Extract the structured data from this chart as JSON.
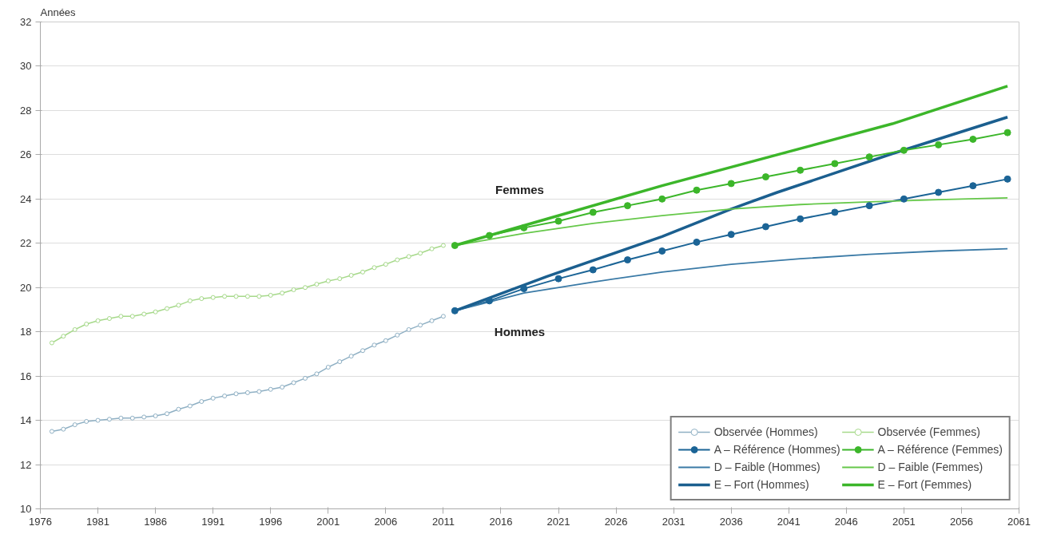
{
  "chart_data": {
    "type": "line",
    "ylabel": "Années",
    "xlim": [
      1976,
      2061
    ],
    "xticks": [
      1976,
      1981,
      1986,
      1991,
      1996,
      2001,
      2006,
      2011,
      2016,
      2021,
      2026,
      2031,
      2036,
      2041,
      2046,
      2051,
      2056,
      2061
    ],
    "ylim": [
      10,
      32
    ],
    "yticks": [
      10,
      12,
      14,
      16,
      18,
      20,
      22,
      24,
      26,
      28,
      30,
      32
    ],
    "grid": "y",
    "legend": "bottom right",
    "annotations": [
      "Femmes",
      "Hommes"
    ],
    "series": [
      {
        "name": "Observée (Hommes)",
        "color": "#8fb0c4",
        "marker": "circle",
        "x": [
          1977,
          1978,
          1979,
          1980,
          1981,
          1982,
          1983,
          1984,
          1985,
          1986,
          1987,
          1988,
          1989,
          1990,
          1991,
          1992,
          1993,
          1994,
          1995,
          1996,
          1997,
          1998,
          1999,
          2000,
          2001,
          2002,
          2003,
          2004,
          2005,
          2006,
          2007,
          2008,
          2009,
          2010,
          2011
        ],
        "values": [
          13.5,
          13.6,
          13.8,
          13.95,
          14.0,
          14.05,
          14.1,
          14.1,
          14.15,
          14.2,
          14.3,
          14.5,
          14.65,
          14.85,
          15.0,
          15.1,
          15.2,
          15.25,
          15.3,
          15.4,
          15.5,
          15.7,
          15.9,
          16.1,
          16.4,
          16.65,
          16.9,
          17.15,
          17.4,
          17.6,
          17.85,
          18.1,
          18.3,
          18.5,
          18.7
        ]
      },
      {
        "name": "A – Référence (Hommes)",
        "color": "#1b6496",
        "marker": "circle",
        "x": [
          2012,
          2015,
          2018,
          2021,
          2024,
          2027,
          2030,
          2033,
          2036,
          2039,
          2042,
          2045,
          2048,
          2051,
          2054,
          2057,
          2060
        ],
        "values": [
          18.95,
          19.4,
          19.95,
          20.4,
          20.8,
          21.25,
          21.65,
          22.05,
          22.4,
          22.75,
          23.1,
          23.4,
          23.7,
          24.0,
          24.3,
          24.6,
          24.9
        ]
      },
      {
        "name": "D – Faible (Hommes)",
        "color": "#3a7aa6",
        "x": [
          2012,
          2018,
          2024,
          2030,
          2036,
          2042,
          2048,
          2054,
          2060
        ],
        "values": [
          18.95,
          19.75,
          20.25,
          20.7,
          21.05,
          21.3,
          21.5,
          21.65,
          21.75
        ]
      },
      {
        "name": "E – Fort (Hommes)",
        "color": "#1b5f8f",
        "x": [
          2012,
          2020,
          2030,
          2036,
          2040,
          2050,
          2060
        ],
        "values": [
          18.95,
          20.5,
          22.3,
          23.55,
          24.3,
          26.05,
          27.7
        ]
      },
      {
        "name": "Observée (Femmes)",
        "color": "#a6d98a",
        "marker": "circle",
        "x": [
          1977,
          1978,
          1979,
          1980,
          1981,
          1982,
          1983,
          1984,
          1985,
          1986,
          1987,
          1988,
          1989,
          1990,
          1991,
          1992,
          1993,
          1994,
          1995,
          1996,
          1997,
          1998,
          1999,
          2000,
          2001,
          2002,
          2003,
          2004,
          2005,
          2006,
          2007,
          2008,
          2009,
          2010,
          2011
        ],
        "values": [
          17.5,
          17.8,
          18.1,
          18.35,
          18.5,
          18.6,
          18.7,
          18.7,
          18.8,
          18.9,
          19.05,
          19.2,
          19.4,
          19.5,
          19.55,
          19.6,
          19.6,
          19.6,
          19.6,
          19.65,
          19.75,
          19.9,
          20.0,
          20.15,
          20.3,
          20.4,
          20.55,
          20.7,
          20.9,
          21.05,
          21.25,
          21.4,
          21.55,
          21.75,
          21.9
        ]
      },
      {
        "name": "A – Référence (Femmes)",
        "color": "#3cb62a",
        "marker": "circle",
        "x": [
          2012,
          2015,
          2018,
          2021,
          2024,
          2027,
          2030,
          2033,
          2036,
          2039,
          2042,
          2045,
          2048,
          2051,
          2054,
          2057,
          2060
        ],
        "values": [
          21.9,
          22.35,
          22.7,
          23.0,
          23.4,
          23.7,
          24.0,
          24.4,
          24.7,
          25.0,
          25.3,
          25.6,
          25.9,
          26.2,
          26.45,
          26.7,
          27.0
        ]
      },
      {
        "name": "D – Faible (Femmes)",
        "color": "#66c84a",
        "x": [
          2012,
          2018,
          2024,
          2030,
          2036,
          2042,
          2048,
          2054,
          2060
        ],
        "values": [
          21.9,
          22.45,
          22.9,
          23.25,
          23.55,
          23.75,
          23.87,
          23.97,
          24.05
        ]
      },
      {
        "name": "E – Fort (Femmes)",
        "color": "#3cb62a",
        "x": [
          2012,
          2020,
          2030,
          2040,
          2050,
          2060
        ],
        "values": [
          21.9,
          23.1,
          24.6,
          26.0,
          27.4,
          29.1
        ]
      }
    ]
  }
}
